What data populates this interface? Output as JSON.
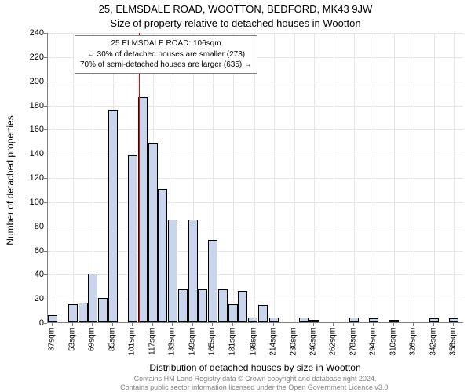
{
  "title_main": "25, ELMSDALE ROAD, WOOTTON, BEDFORD, MK43 9JW",
  "title_sub": "Size of property relative to detached houses in Wootton",
  "ylabel": "Number of detached properties",
  "xlabel": "Distribution of detached houses by size in Wootton",
  "chart": {
    "type": "histogram",
    "ylim": [
      0,
      240
    ],
    "ytick_step": 20,
    "xtick_step": 16,
    "bar_fill": "#c9d5ec",
    "bar_border": "#000000",
    "grid_color": "#e6e6e6",
    "axis_color": "#808080",
    "background_color": "#ffffff",
    "bar_width": 0.95,
    "bins": [
      {
        "x": 37,
        "count": 6
      },
      {
        "x": 45,
        "count": 0
      },
      {
        "x": 53,
        "count": 15
      },
      {
        "x": 61,
        "count": 16
      },
      {
        "x": 69,
        "count": 40
      },
      {
        "x": 77,
        "count": 20
      },
      {
        "x": 85,
        "count": 176
      },
      {
        "x": 93,
        "count": 0
      },
      {
        "x": 101,
        "count": 138
      },
      {
        "x": 109,
        "count": 186
      },
      {
        "x": 117,
        "count": 148
      },
      {
        "x": 125,
        "count": 110
      },
      {
        "x": 133,
        "count": 85
      },
      {
        "x": 141,
        "count": 27
      },
      {
        "x": 149,
        "count": 85
      },
      {
        "x": 157,
        "count": 27
      },
      {
        "x": 165,
        "count": 68
      },
      {
        "x": 173,
        "count": 27
      },
      {
        "x": 181,
        "count": 15
      },
      {
        "x": 189,
        "count": 26
      },
      {
        "x": 197,
        "count": 4
      },
      {
        "x": 205,
        "count": 14
      },
      {
        "x": 214,
        "count": 4
      },
      {
        "x": 222,
        "count": 0
      },
      {
        "x": 230,
        "count": 0
      },
      {
        "x": 238,
        "count": 4
      },
      {
        "x": 246,
        "count": 2
      },
      {
        "x": 254,
        "count": 0
      },
      {
        "x": 262,
        "count": 0
      },
      {
        "x": 270,
        "count": 0
      },
      {
        "x": 278,
        "count": 4
      },
      {
        "x": 286,
        "count": 0
      },
      {
        "x": 294,
        "count": 3
      },
      {
        "x": 302,
        "count": 0
      },
      {
        "x": 310,
        "count": 2
      },
      {
        "x": 318,
        "count": 0
      },
      {
        "x": 326,
        "count": 0
      },
      {
        "x": 334,
        "count": 0
      },
      {
        "x": 342,
        "count": 3
      },
      {
        "x": 350,
        "count": 0
      },
      {
        "x": 358,
        "count": 3
      }
    ],
    "xtick_labels": [
      "37sqm",
      "53sqm",
      "69sqm",
      "85sqm",
      "101sqm",
      "117sqm",
      "133sqm",
      "149sqm",
      "165sqm",
      "181sqm",
      "198sqm",
      "214sqm",
      "230sqm",
      "246sqm",
      "262sqm",
      "278sqm",
      "294sqm",
      "310sqm",
      "326sqm",
      "342sqm",
      "358sqm"
    ],
    "xtick_values": [
      37,
      53,
      69,
      85,
      101,
      117,
      133,
      149,
      165,
      181,
      198,
      214,
      230,
      246,
      262,
      278,
      294,
      310,
      326,
      342,
      358
    ],
    "x_range": [
      33,
      366
    ]
  },
  "reference": {
    "value": 106,
    "color": "#ff0000",
    "width": 1
  },
  "annotation": {
    "line1": "25 ELMSDALE ROAD: 106sqm",
    "line2": "← 30% of detached houses are smaller (273)",
    "line3": "70% of semi-detached houses are larger (635) →"
  },
  "license": "Contains HM Land Registry data © Crown copyright and database right 2024.\nContains public sector information licensed under the Open Government Licence v3.0.",
  "fonts": {
    "title": 13,
    "axis_label": 12,
    "tick": 11,
    "xtick": 10,
    "annotation": 10,
    "license": 9
  },
  "colors": {
    "text": "#000000",
    "license_text": "#808080"
  }
}
